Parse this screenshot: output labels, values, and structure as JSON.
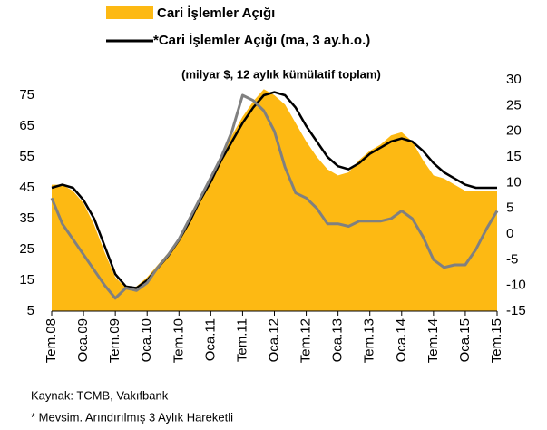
{
  "chart_data": {
    "type": "line",
    "legend": [
      "Cari İşlemler Açığı",
      "*Cari İşlemler Açığı (ma, 3 ay.h.o.)"
    ],
    "subtitle": "(milyar $, 12 aylık kümülatif toplam)",
    "categories": [
      "Tem.08",
      null,
      null,
      "Oca.09",
      null,
      null,
      "Tem.09",
      null,
      null,
      "Oca.10",
      null,
      null,
      "Tem.10",
      null,
      null,
      "Oca.11",
      null,
      null,
      "Tem.11",
      null,
      null,
      "Oca.12",
      null,
      null,
      "Tem.12",
      null,
      null,
      "Oca.13",
      null,
      null,
      "Tem.13",
      null,
      null,
      "Oca.14",
      null,
      null,
      "Tem.14",
      null,
      null,
      "Oca.15",
      null,
      null,
      "Tem.15"
    ],
    "series": [
      {
        "name": "Cari İşlemler Açığı",
        "kind": "area",
        "color": "#FDB913",
        "values": [
          46,
          46,
          44,
          40,
          33,
          24,
          16,
          12.5,
          13,
          16,
          20,
          24,
          28,
          34,
          41,
          48,
          55,
          62,
          68,
          73,
          77,
          75,
          72,
          66,
          60,
          55,
          51,
          49,
          50,
          54,
          57,
          59,
          62,
          63,
          60,
          54,
          49,
          48,
          46,
          44,
          44,
          44,
          44
        ]
      },
      {
        "name": "*Cari İşlemler Açığı (ma, 3 ay.h.o.)",
        "kind": "line",
        "color": "#000000",
        "values": [
          45,
          46,
          45,
          41,
          35,
          26,
          17,
          13,
          12.5,
          15,
          19,
          23,
          28,
          34,
          41,
          47,
          54,
          60,
          66,
          71,
          75,
          76,
          75,
          71,
          65,
          60,
          55,
          52,
          51,
          53,
          56,
          58,
          60,
          61,
          60,
          57,
          53,
          50,
          48,
          46,
          45,
          45,
          45
        ]
      },
      {
        "kind": "line",
        "color": "#808080",
        "axis": "y2",
        "values": [
          7,
          2,
          -1,
          -4,
          -7,
          -10,
          -12.5,
          -10.5,
          -11,
          -9.5,
          -6.5,
          -4,
          -1,
          3,
          7,
          11,
          15,
          20,
          27,
          26,
          24,
          20,
          13,
          8,
          7,
          5,
          2,
          2,
          1.5,
          2.5,
          2.5,
          2.5,
          3,
          4.5,
          3,
          -0.5,
          -5,
          -6.5,
          -6,
          -6,
          -3,
          1,
          4.5
        ]
      }
    ],
    "ylim": [
      5,
      80
    ],
    "yticks": [
      5,
      15,
      25,
      35,
      45,
      55,
      65,
      75
    ],
    "y2lim": [
      -15,
      30
    ],
    "y2ticks": [
      -15,
      -10,
      -5,
      0,
      5,
      10,
      15,
      20,
      25,
      30
    ],
    "grid": false,
    "notes": [
      "Kaynak: TCMB, Vakıfbank",
      "* Mevsim. Arındırılmış 3 Aylık Hareketli"
    ]
  }
}
